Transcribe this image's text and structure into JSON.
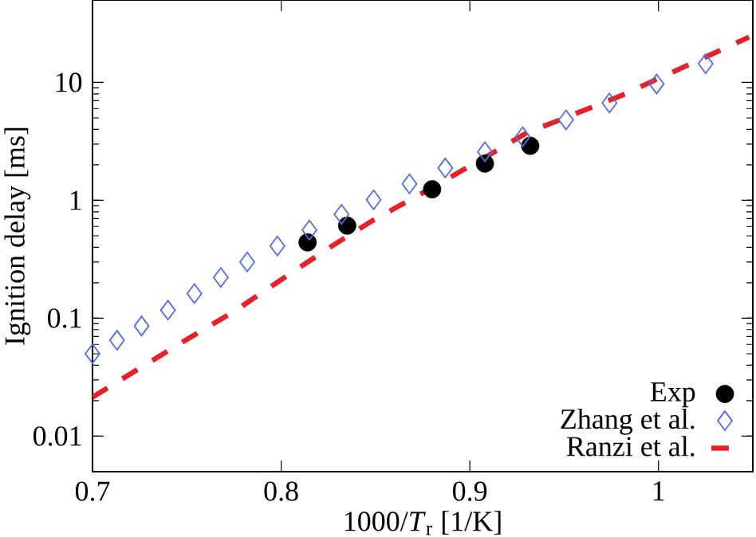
{
  "chart_data": {
    "type": "scatter",
    "xlabel": "1000/*T*$_{r}$ [1/K]",
    "ylabel": "Ignition delay [ms]",
    "xlim": [
      0.7,
      1.05
    ],
    "ylim": [
      0.005,
      50
    ],
    "xticks": [
      0.7,
      0.8,
      0.9,
      1
    ],
    "yticks": [
      0.01,
      0.1,
      1,
      10
    ],
    "log": "y",
    "grid": false,
    "legend": "bottom right",
    "series": [
      {
        "name": "Exp",
        "marker": "circle",
        "color": "#000000",
        "x": [
          0.814,
          0.835,
          0.88,
          0.908,
          0.932
        ],
        "values": [
          0.44,
          0.61,
          1.24,
          2.05,
          2.9
        ]
      },
      {
        "name": "Zhang et al.",
        "marker": "diamond",
        "color": "#5070e0",
        "x": [
          0.7,
          0.713,
          0.726,
          0.74,
          0.754,
          0.768,
          0.782,
          0.798,
          0.815,
          0.832,
          0.849,
          0.868,
          0.887,
          0.908,
          0.928,
          0.951,
          0.974,
          0.999,
          1.025
        ],
        "values": [
          0.05,
          0.065,
          0.086,
          0.117,
          0.162,
          0.222,
          0.3,
          0.41,
          0.56,
          0.76,
          1.01,
          1.38,
          1.88,
          2.58,
          3.46,
          4.81,
          6.7,
          9.7,
          14.4
        ]
      },
      {
        "name": "Ranzi et al.",
        "type": "line",
        "marker": "none",
        "line_style": "dashed",
        "color": "#e8202a",
        "x": [
          0.7,
          0.7186,
          0.7464,
          0.775,
          0.8,
          0.8255,
          0.848,
          0.876,
          0.904,
          0.93,
          0.98,
          1.048
        ],
        "values": [
          0.0214,
          0.0326,
          0.061,
          0.114,
          0.212,
          0.396,
          0.667,
          1.18,
          2.12,
          3.72,
          7.7,
          24.2
        ]
      }
    ]
  }
}
